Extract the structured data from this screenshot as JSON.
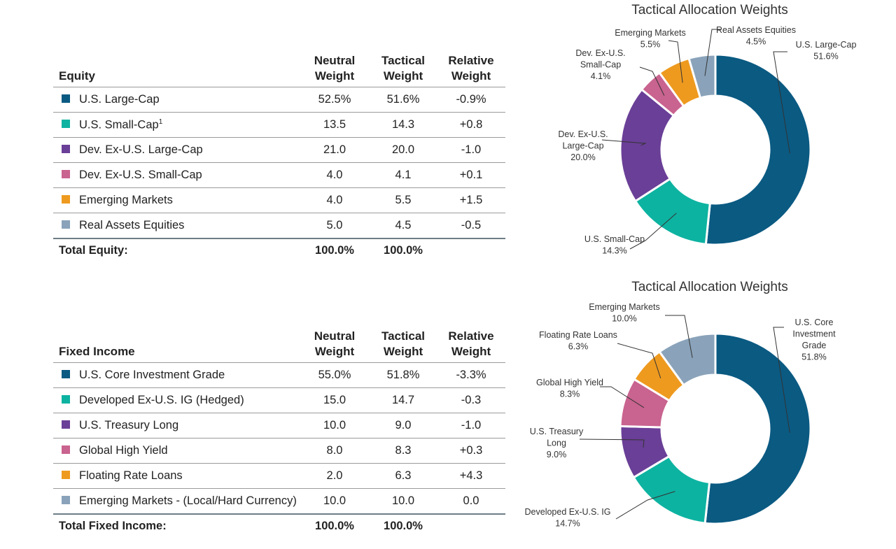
{
  "equity": {
    "section_label": "Equity",
    "headers": {
      "neutral": [
        "Neutral",
        "Weight"
      ],
      "tactical": [
        "Tactical",
        "Weight"
      ],
      "relative": [
        "Relative",
        "Weight"
      ]
    },
    "rows": [
      {
        "name": "U.S. Large-Cap",
        "neutral": "52.5%",
        "tactical": "51.6%",
        "relative": "-0.9%",
        "color": "#0a5a82"
      },
      {
        "name": "U.S. Small-Cap",
        "footnote": "1",
        "neutral": "13.5",
        "tactical": "14.3",
        "relative": "+0.8",
        "color": "#0db3a1"
      },
      {
        "name": "Dev. Ex-U.S. Large-Cap",
        "neutral": "21.0",
        "tactical": "20.0",
        "relative": "-1.0",
        "color": "#6a3f97"
      },
      {
        "name": "Dev. Ex-U.S. Small-Cap",
        "neutral": "4.0",
        "tactical": "4.1",
        "relative": "+0.1",
        "color": "#c9638f"
      },
      {
        "name": "Emerging Markets",
        "neutral": "4.0",
        "tactical": "5.5",
        "relative": "+1.5",
        "color": "#ee9a1f"
      },
      {
        "name": "Real Assets Equities",
        "neutral": "5.0",
        "tactical": "4.5",
        "relative": "-0.5",
        "color": "#8aa3ba"
      }
    ],
    "total": {
      "label": "Total Equity:",
      "neutral": "100.0%",
      "tactical": "100.0%"
    }
  },
  "fixed_income": {
    "section_label": "Fixed Income",
    "headers": {
      "neutral": [
        "Neutral",
        "Weight"
      ],
      "tactical": [
        "Tactical",
        "Weight"
      ],
      "relative": [
        "Relative",
        "Weight"
      ]
    },
    "rows": [
      {
        "name": "U.S. Core Investment Grade",
        "neutral": "55.0%",
        "tactical": "51.8%",
        "relative": "-3.3%",
        "color": "#0a5a82"
      },
      {
        "name": "Developed Ex-U.S. IG (Hedged)",
        "neutral": "15.0",
        "tactical": "14.7",
        "relative": "-0.3",
        "color": "#0db3a1"
      },
      {
        "name": "U.S. Treasury Long",
        "neutral": "10.0",
        "tactical": "9.0",
        "relative": "-1.0",
        "color": "#6a3f97"
      },
      {
        "name": "Global High Yield",
        "neutral": "8.0",
        "tactical": "8.3",
        "relative": "+0.3",
        "color": "#c9638f"
      },
      {
        "name": "Floating Rate Loans",
        "neutral": "2.0",
        "tactical": "6.3",
        "relative": "+4.3",
        "color": "#ee9a1f"
      },
      {
        "name": "Emerging Markets - (Local/Hard Currency)",
        "neutral": "10.0",
        "tactical": "10.0",
        "relative": "0.0",
        "color": "#8aa3ba"
      }
    ],
    "total": {
      "label": "Total Fixed Income:",
      "neutral": "100.0%",
      "tactical": "100.0%"
    }
  },
  "chart_data": [
    {
      "type": "pie",
      "title": "Tactical Allocation Weights",
      "categories": [
        "U.S. Large-Cap",
        "U.S. Small-Cap",
        "Dev. Ex-U.S. Large-Cap",
        "Dev. Ex-U.S. Small-Cap",
        "Emerging Markets",
        "Real Assets Equities"
      ],
      "values": [
        51.6,
        14.3,
        20.0,
        4.1,
        5.5,
        4.5
      ],
      "colors": [
        "#0a5a82",
        "#0db3a1",
        "#6a3f97",
        "#c9638f",
        "#ee9a1f",
        "#8aa3ba"
      ],
      "labels": [
        [
          "U.S. Large-Cap",
          "51.6%"
        ],
        [
          "U.S. Small-Cap",
          "14.3%"
        ],
        [
          "Dev. Ex-U.S.",
          "Large-Cap",
          "20.0%"
        ],
        [
          "Dev. Ex-U.S.",
          "Small-Cap",
          "4.1%"
        ],
        [
          "Emerging Markets",
          "5.5%"
        ],
        [
          "Real Assets Equities",
          "4.5%"
        ]
      ]
    },
    {
      "type": "pie",
      "title": "Tactical Allocation Weights",
      "categories": [
        "U.S. Core Investment Grade",
        "Developed Ex-U.S. IG",
        "U.S. Treasury Long",
        "Global High Yield",
        "Floating Rate Loans",
        "Emerging Markets"
      ],
      "values": [
        51.8,
        14.7,
        9.0,
        8.3,
        6.3,
        10.0
      ],
      "colors": [
        "#0a5a82",
        "#0db3a1",
        "#6a3f97",
        "#c9638f",
        "#ee9a1f",
        "#8aa3ba"
      ],
      "labels": [
        [
          "U.S. Core",
          "Investment",
          "Grade",
          "51.8%"
        ],
        [
          "Developed Ex-U.S. IG",
          "14.7%"
        ],
        [
          "U.S. Treasury",
          "Long",
          "9.0%"
        ],
        [
          "Global High Yield",
          "8.3%"
        ],
        [
          "Floating Rate Loans",
          "6.3%"
        ],
        [
          "Emerging Markets",
          "10.0%"
        ]
      ]
    }
  ]
}
